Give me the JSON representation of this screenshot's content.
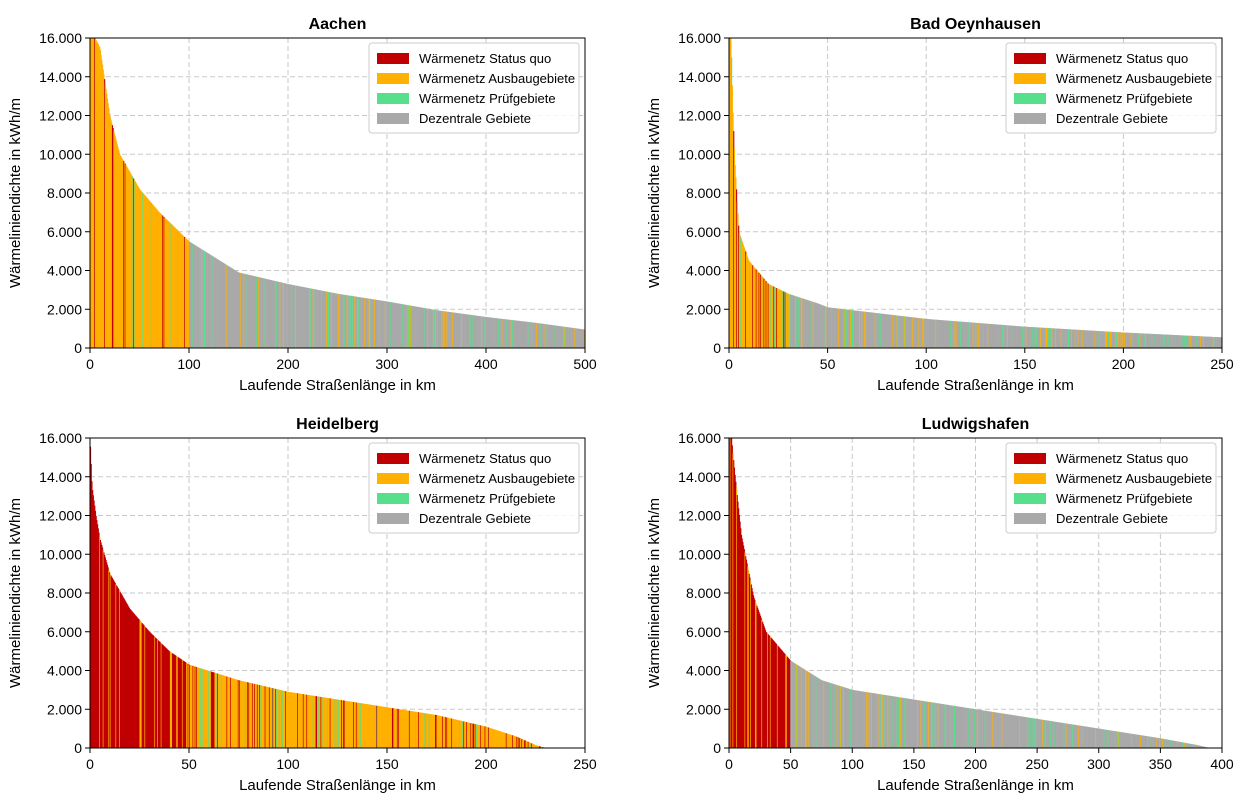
{
  "colors": {
    "status_quo": "#c00000",
    "ausbau": "#ffb000",
    "pruef": "#56e08c",
    "dezentral": "#a9a9a9",
    "grid": "#c8c8c8",
    "axis": "#000000"
  },
  "chart_data": [
    {
      "type": "area",
      "title": "Aachen",
      "xlabel": "Laufende Straßenlänge in km",
      "ylabel": "Wärmeliniendichte in kWh/m",
      "xlim": [
        0,
        500
      ],
      "ylim": [
        0,
        16000
      ],
      "xticks": [
        0,
        100,
        200,
        300,
        400,
        500
      ],
      "xtick_labels": [
        "0",
        "100",
        "200",
        "300",
        "400",
        "500"
      ],
      "yticks": [
        0,
        2000,
        4000,
        6000,
        8000,
        10000,
        12000,
        14000,
        16000
      ],
      "ytick_labels": [
        "0",
        "2.000",
        "4.000",
        "6.000",
        "8.000",
        "10.000",
        "12.000",
        "14.000",
        "16.000"
      ],
      "grid": true,
      "legend_position": "top-right",
      "legend": [
        "Wärmenetz Status quo",
        "Wärmenetz Ausbaugebiete",
        "Wärmenetz Prüfgebiete",
        "Dezentrale Gebiete"
      ],
      "series": [
        {
          "name": "Wärmeliniendichte",
          "x": [
            0,
            5,
            10,
            20,
            30,
            50,
            70,
            100,
            150,
            200,
            250,
            300,
            350,
            400,
            450,
            500
          ],
          "values": [
            16000,
            16000,
            15500,
            12000,
            10000,
            8200,
            7000,
            5500,
            3900,
            3300,
            2800,
            2400,
            1950,
            1600,
            1300,
            950
          ]
        }
      ],
      "dominant_category_by_x": [
        {
          "x_from": 0,
          "x_to": 100,
          "category": "Wärmenetz Ausbaugebiete"
        },
        {
          "x_from": 100,
          "x_to": 500,
          "category": "Dezentrale Gebiete"
        }
      ]
    },
    {
      "type": "area",
      "title": "Bad Oeynhausen",
      "xlabel": "Laufende Straßenlänge in km",
      "ylabel": "Wärmeliniendichte in kWh/m",
      "xlim": [
        0,
        250
      ],
      "ylim": [
        0,
        16000
      ],
      "xticks": [
        0,
        50,
        100,
        150,
        200,
        250
      ],
      "xtick_labels": [
        "0",
        "50",
        "100",
        "150",
        "200",
        "250"
      ],
      "yticks": [
        0,
        2000,
        4000,
        6000,
        8000,
        10000,
        12000,
        14000,
        16000
      ],
      "ytick_labels": [
        "0",
        "2.000",
        "4.000",
        "6.000",
        "8.000",
        "10.000",
        "12.000",
        "14.000",
        "16.000"
      ],
      "grid": true,
      "legend_position": "top-right",
      "legend": [
        "Wärmenetz Status quo",
        "Wärmenetz Ausbaugebiete",
        "Wärmenetz Prüfgebiete",
        "Dezentrale Gebiete"
      ],
      "series": [
        {
          "name": "Wärmeliniendichte",
          "x": [
            0,
            1,
            2,
            3,
            5,
            10,
            20,
            30,
            45,
            50,
            100,
            150,
            200,
            250
          ],
          "values": [
            16000,
            16000,
            12000,
            9500,
            6000,
            4500,
            3300,
            2800,
            2300,
            2100,
            1500,
            1100,
            800,
            550
          ]
        }
      ],
      "dominant_category_by_x": [
        {
          "x_from": 0,
          "x_to": 30,
          "category": "Wärmenetz Ausbaugebiete"
        },
        {
          "x_from": 30,
          "x_to": 250,
          "category": "Dezentrale Gebiete"
        }
      ]
    },
    {
      "type": "area",
      "title": "Heidelberg",
      "xlabel": "Laufende Straßenlänge in km",
      "ylabel": "Wärmeliniendichte in kWh/m",
      "xlim": [
        0,
        250
      ],
      "ylim": [
        0,
        16000
      ],
      "xticks": [
        0,
        50,
        100,
        150,
        200,
        250
      ],
      "xtick_labels": [
        "0",
        "50",
        "100",
        "150",
        "200",
        "250"
      ],
      "yticks": [
        0,
        2000,
        4000,
        6000,
        8000,
        10000,
        12000,
        14000,
        16000
      ],
      "ytick_labels": [
        "0",
        "2.000",
        "4.000",
        "6.000",
        "8.000",
        "10.000",
        "12.000",
        "14.000",
        "16.000"
      ],
      "grid": true,
      "legend_position": "top-right",
      "legend": [
        "Wärmenetz Status quo",
        "Wärmenetz Ausbaugebiete",
        "Wärmenetz Prüfgebiete",
        "Dezentrale Gebiete"
      ],
      "series": [
        {
          "name": "Wärmeliniendichte",
          "x": [
            0,
            1,
            3,
            5,
            10,
            20,
            30,
            40,
            50,
            75,
            100,
            125,
            150,
            175,
            200,
            215,
            225,
            230,
            250
          ],
          "values": [
            16000,
            13500,
            12000,
            10800,
            9000,
            7200,
            6000,
            5000,
            4300,
            3500,
            2900,
            2500,
            2100,
            1700,
            1100,
            600,
            150,
            0,
            0
          ]
        }
      ],
      "dominant_category_by_x": [
        {
          "x_from": 0,
          "x_to": 50,
          "category": "Wärmenetz Status quo"
        },
        {
          "x_from": 50,
          "x_to": 230,
          "category": "Wärmenetz Ausbaugebiete"
        }
      ]
    },
    {
      "type": "area",
      "title": "Ludwigshafen",
      "xlabel": "Laufende Straßenlänge in km",
      "ylabel": "Wärmeliniendichte in kWh/m",
      "xlim": [
        0,
        400
      ],
      "ylim": [
        0,
        16000
      ],
      "xticks": [
        0,
        50,
        100,
        150,
        200,
        250,
        300,
        350,
        400
      ],
      "xtick_labels": [
        "0",
        "50",
        "100",
        "150",
        "200",
        "250",
        "300",
        "350",
        "400"
      ],
      "yticks": [
        0,
        2000,
        4000,
        6000,
        8000,
        10000,
        12000,
        14000,
        16000
      ],
      "ytick_labels": [
        "0",
        "2.000",
        "4.000",
        "6.000",
        "8.000",
        "10.000",
        "12.000",
        "14.000",
        "16.000"
      ],
      "grid": true,
      "legend_position": "top-right",
      "legend": [
        "Wärmenetz Status quo",
        "Wärmenetz Ausbaugebiete",
        "Wärmenetz Prüfgebiete",
        "Dezentrale Gebiete"
      ],
      "series": [
        {
          "name": "Wärmeliniendichte",
          "x": [
            0,
            2,
            5,
            10,
            20,
            30,
            50,
            75,
            100,
            150,
            200,
            250,
            300,
            350,
            380,
            390,
            400
          ],
          "values": [
            16000,
            16000,
            14000,
            11000,
            7800,
            6000,
            4500,
            3500,
            3000,
            2500,
            2000,
            1500,
            1000,
            500,
            150,
            0,
            0
          ]
        }
      ],
      "dominant_category_by_x": [
        {
          "x_from": 0,
          "x_to": 50,
          "category": "Wärmenetz Status quo"
        },
        {
          "x_from": 50,
          "x_to": 400,
          "category": "Dezentrale Gebiete"
        }
      ]
    }
  ]
}
